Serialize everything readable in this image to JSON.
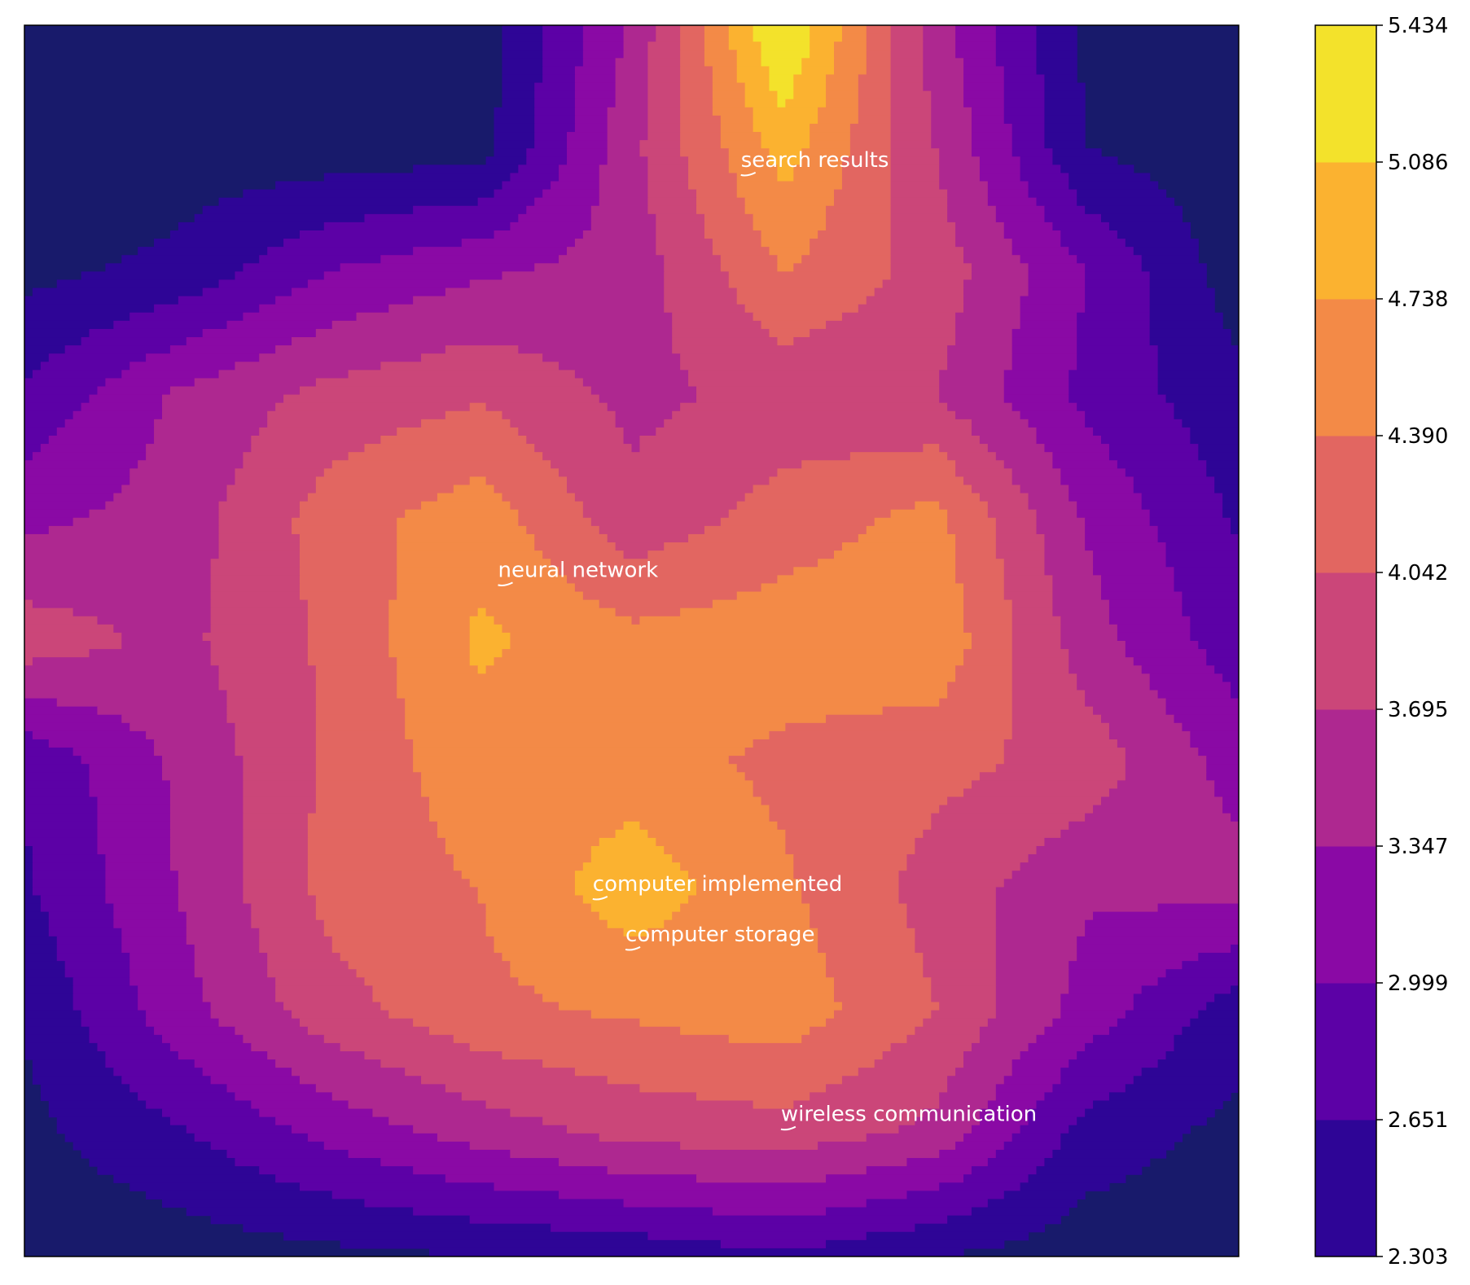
{
  "chart_data": {
    "type": "contourf",
    "title": "",
    "xlabel": "",
    "ylabel": "",
    "colormap": "plasma",
    "background_color": "#181A6B",
    "grid": false,
    "axes_ticks_visible": false,
    "colorbar": {
      "placement": "right",
      "tick_labels": [
        "2.303",
        "2.651",
        "2.999",
        "3.347",
        "3.695",
        "4.042",
        "4.390",
        "4.738",
        "5.086",
        "5.434"
      ],
      "levels": [
        2.303,
        2.651,
        2.999,
        3.347,
        3.695,
        4.042,
        4.39,
        4.738,
        5.086,
        5.434
      ],
      "band_colors": [
        "#2E0596",
        "#5C01A6",
        "#8A09A5",
        "#AE2890",
        "#CB4679",
        "#E26661",
        "#F38A47",
        "#FBB230",
        "#F3E22B"
      ]
    },
    "x_range": [
      0,
      1
    ],
    "y_range": [
      0,
      1
    ],
    "grid_x": [
      0,
      0.125,
      0.25,
      0.375,
      0.5,
      0.625,
      0.75,
      0.875,
      1
    ],
    "grid_y": [
      0,
      0.125,
      0.25,
      0.375,
      0.5,
      0.625,
      0.75,
      0.875,
      1
    ],
    "z": [
      [
        2.05,
        2.1,
        2.2,
        2.3,
        2.4,
        2.6,
        2.3,
        2.1,
        2.05
      ],
      [
        2.2,
        2.6,
        3.1,
        3.5,
        3.8,
        3.9,
        3.6,
        2.5,
        2.2
      ],
      [
        2.35,
        3.2,
        3.9,
        4.3,
        4.45,
        4.6,
        4.05,
        3.2,
        2.45
      ],
      [
        2.6,
        3.35,
        4.15,
        4.4,
        4.95,
        4.45,
        3.9,
        3.4,
        3.5
      ],
      [
        2.7,
        3.4,
        4.1,
        4.6,
        4.55,
        4.3,
        4.15,
        3.9,
        3.2
      ],
      [
        3.9,
        3.6,
        4.1,
        4.8,
        4.5,
        4.6,
        4.65,
        3.5,
        2.8
      ],
      [
        3.25,
        3.5,
        4.2,
        4.6,
        3.8,
        4.2,
        4.5,
        3.3,
        2.6
      ],
      [
        2.7,
        3.4,
        3.8,
        4.0,
        3.6,
        3.8,
        3.7,
        2.9,
        2.4
      ],
      [
        2.2,
        2.4,
        3.0,
        3.3,
        3.5,
        4.4,
        3.9,
        3.0,
        2.1
      ],
      [
        2.05,
        2.1,
        2.1,
        2.15,
        3.6,
        4.9,
        3.7,
        2.3,
        2.05
      ],
      [
        2.05,
        2.05,
        2.05,
        2.1,
        3.4,
        5.5,
        3.5,
        2.2,
        2.05
      ]
    ],
    "z_row_y": [
      0,
      0.1,
      0.2,
      0.3,
      0.4,
      0.5,
      0.6,
      0.7,
      0.8,
      0.9,
      1.0
    ],
    "annotations": [
      {
        "text": "search results",
        "x": 0.59,
        "y": 0.885
      },
      {
        "text": "neural network",
        "x": 0.39,
        "y": 0.552
      },
      {
        "text": "computer implemented",
        "x": 0.468,
        "y": 0.297
      },
      {
        "text": "computer storage",
        "x": 0.495,
        "y": 0.256
      },
      {
        "text": "wireless communication",
        "x": 0.623,
        "y": 0.11
      }
    ]
  }
}
